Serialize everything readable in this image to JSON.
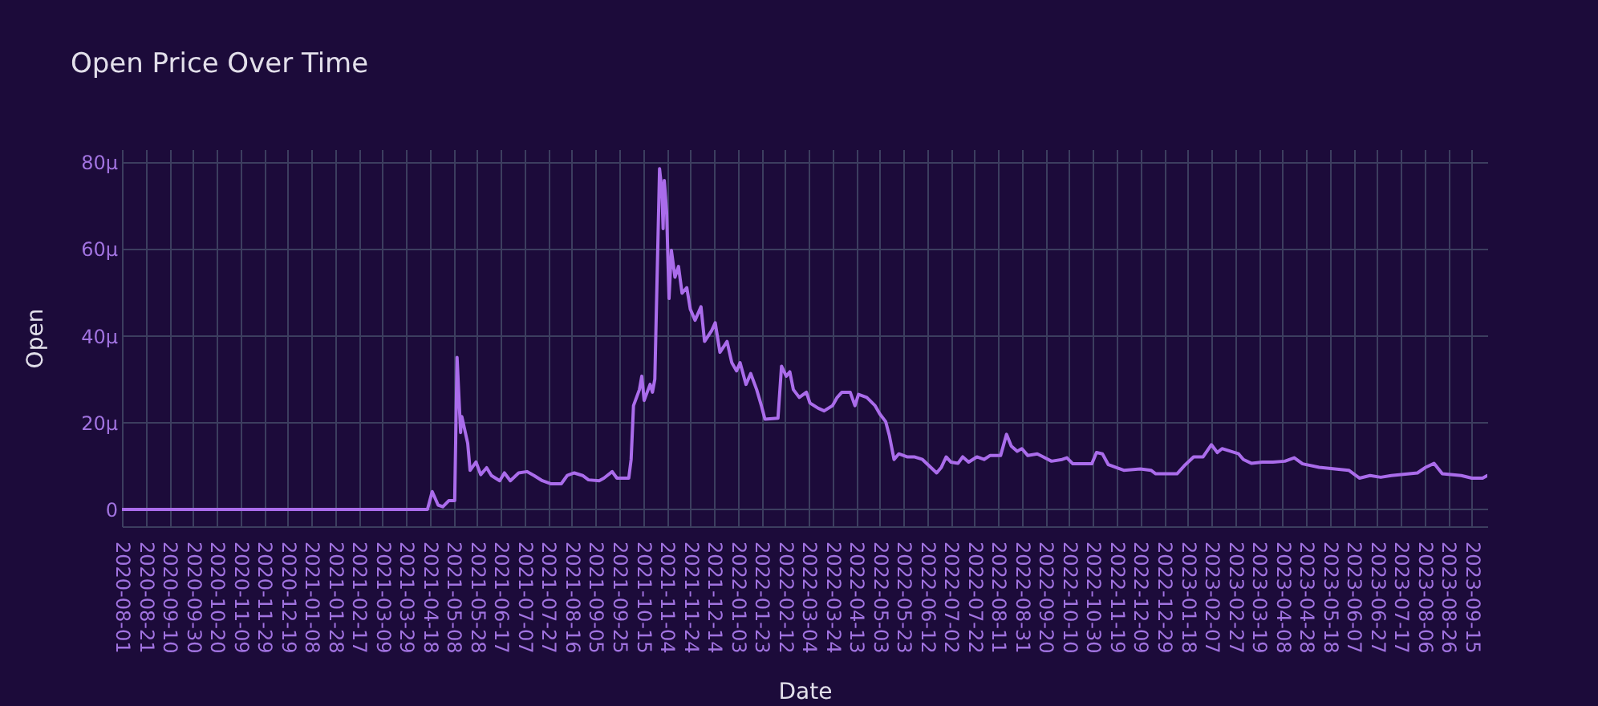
{
  "chart_data": {
    "type": "line",
    "title": "Open Price Over Time",
    "xlabel": "Date",
    "ylabel": "Open",
    "x": [
      "2020-08-01",
      "2021-04-16",
      "2021-04-20",
      "2021-04-25",
      "2021-04-29",
      "2021-05-04",
      "2021-05-09",
      "2021-05-11",
      "2021-05-14",
      "2021-05-15",
      "2021-05-18",
      "2021-05-20",
      "2021-05-22",
      "2021-05-27",
      "2021-05-31",
      "2021-06-05",
      "2021-06-09",
      "2021-06-16",
      "2021-06-20",
      "2021-06-25",
      "2021-07-02",
      "2021-07-09",
      "2021-07-15",
      "2021-07-22",
      "2021-07-29",
      "2021-08-07",
      "2021-08-12",
      "2021-08-18",
      "2021-08-25",
      "2021-08-30",
      "2021-09-08",
      "2021-09-12",
      "2021-09-19",
      "2021-09-23",
      "2021-10-03",
      "2021-10-05",
      "2021-10-07",
      "2021-10-12",
      "2021-10-14",
      "2021-10-16",
      "2021-10-21",
      "2021-10-23",
      "2021-10-25",
      "2021-10-29",
      "2021-10-31",
      "2021-11-01",
      "2021-11-02",
      "2021-11-04",
      "2021-11-06",
      "2021-11-08",
      "2021-11-11",
      "2021-11-14",
      "2021-11-17",
      "2021-11-21",
      "2021-11-24",
      "2021-11-28",
      "2021-12-03",
      "2021-12-06",
      "2021-12-12",
      "2021-12-15",
      "2021-12-19",
      "2021-12-25",
      "2021-12-29",
      "2022-01-02",
      "2022-01-05",
      "2022-01-10",
      "2022-01-14",
      "2022-01-19",
      "2022-01-23",
      "2022-01-26",
      "2022-02-06",
      "2022-02-09",
      "2022-02-13",
      "2022-02-16",
      "2022-02-19",
      "2022-02-24",
      "2022-03-02",
      "2022-03-05",
      "2022-03-12",
      "2022-03-17",
      "2022-03-24",
      "2022-03-28",
      "2022-04-01",
      "2022-04-08",
      "2022-04-12",
      "2022-04-15",
      "2022-04-22",
      "2022-04-29",
      "2022-05-03",
      "2022-05-08",
      "2022-05-11",
      "2022-05-15",
      "2022-05-19",
      "2022-05-26",
      "2022-06-01",
      "2022-06-08",
      "2022-06-15",
      "2022-06-20",
      "2022-06-24",
      "2022-06-28",
      "2022-07-02",
      "2022-07-08",
      "2022-07-12",
      "2022-07-17",
      "2022-07-24",
      "2022-07-30",
      "2022-08-04",
      "2022-08-13",
      "2022-08-18",
      "2022-08-22",
      "2022-08-27",
      "2022-08-31",
      "2022-09-05",
      "2022-09-13",
      "2022-09-18",
      "2022-09-25",
      "2022-10-04",
      "2022-10-08",
      "2022-10-13",
      "2022-10-29",
      "2022-11-02",
      "2022-11-07",
      "2022-11-12",
      "2022-11-18",
      "2022-11-25",
      "2022-12-09",
      "2022-12-18",
      "2022-12-22",
      "2023-01-09",
      "2023-01-16",
      "2023-01-23",
      "2023-01-31",
      "2023-02-07",
      "2023-02-12",
      "2023-02-16",
      "2023-02-23",
      "2023-03-02",
      "2023-03-06",
      "2023-03-13",
      "2023-03-22",
      "2023-03-31",
      "2023-04-10",
      "2023-04-18",
      "2023-04-25",
      "2023-05-09",
      "2023-06-03",
      "2023-06-12",
      "2023-06-21",
      "2023-06-30",
      "2023-07-09",
      "2023-07-31",
      "2023-08-07",
      "2023-08-14",
      "2023-08-21",
      "2023-09-06",
      "2023-09-15",
      "2023-09-24",
      "2023-09-28"
    ],
    "series": [
      {
        "color": "#aa6ceb",
        "values": [
          0,
          0,
          4.1,
          1.0,
          0.6,
          2.0,
          2.0,
          35,
          17.7,
          21.4,
          17.7,
          15.2,
          9.0,
          10.9,
          8.0,
          9.6,
          7.8,
          6.6,
          8.4,
          6.6,
          8.4,
          8.7,
          7.8,
          6.6,
          5.9,
          5.9,
          7.8,
          8.4,
          7.8,
          6.8,
          6.6,
          7.2,
          8.7,
          7.2,
          7.2,
          11.5,
          23.9,
          27.6,
          30.7,
          25.1,
          28.8,
          27.0,
          30.0,
          78.5,
          73.3,
          64.7,
          75.8,
          68.4,
          48.6,
          59.7,
          53.5,
          56.0,
          49.8,
          51.1,
          46.1,
          43.6,
          46.7,
          38.7,
          41.2,
          43.0,
          36.2,
          38.7,
          33.8,
          31.9,
          33.8,
          28.8,
          31.3,
          27.6,
          23.9,
          20.8,
          21.0,
          33.0,
          30.7,
          31.7,
          27.6,
          25.8,
          27.0,
          24.5,
          23.3,
          22.7,
          23.9,
          25.8,
          27.0,
          27.0,
          23.9,
          26.5,
          25.8,
          23.9,
          22.0,
          20.2,
          17.1,
          11.5,
          12.8,
          12.1,
          12.1,
          11.5,
          9.7,
          8.4,
          9.7,
          12.1,
          10.9,
          10.6,
          12.1,
          10.9,
          12.1,
          11.5,
          12.4,
          12.4,
          17.3,
          14.6,
          13.4,
          14.0,
          12.4,
          12.8,
          12.1,
          11.1,
          11.5,
          11.9,
          10.5,
          10.5,
          13.1,
          12.8,
          10.3,
          9.7,
          9.0,
          9.3,
          9.0,
          8.2,
          8.2,
          10.3,
          12.1,
          12.1,
          14.9,
          13.1,
          14.0,
          13.4,
          12.8,
          11.5,
          10.6,
          10.9,
          10.9,
          11.1,
          11.9,
          10.5,
          9.7,
          9.0,
          7.2,
          7.8,
          7.4,
          7.8,
          8.4,
          9.7,
          10.6,
          8.2,
          7.8,
          7.2,
          7.2,
          7.8
        ]
      }
    ],
    "xlim": [
      "2020-08-01",
      "2023-09-28"
    ],
    "ylim": [
      -3.9,
      83
    ],
    "xticks": [
      "2020-08-01",
      "2020-08-21",
      "2020-09-10",
      "2020-09-30",
      "2020-10-20",
      "2020-11-09",
      "2020-11-29",
      "2020-12-19",
      "2021-01-08",
      "2021-01-28",
      "2021-02-17",
      "2021-03-09",
      "2021-03-29",
      "2021-04-18",
      "2021-05-08",
      "2021-05-28",
      "2021-06-17",
      "2021-07-07",
      "2021-07-27",
      "2021-08-16",
      "2021-09-05",
      "2021-09-25",
      "2021-10-15",
      "2021-11-04",
      "2021-11-24",
      "2021-12-14",
      "2022-01-03",
      "2022-01-23",
      "2022-02-12",
      "2022-03-04",
      "2022-03-24",
      "2022-04-13",
      "2022-05-03",
      "2022-05-23",
      "2022-06-12",
      "2022-07-02",
      "2022-07-22",
      "2022-08-11",
      "2022-08-31",
      "2022-09-20",
      "2022-10-10",
      "2022-10-30",
      "2022-11-19",
      "2022-12-09",
      "2022-12-29",
      "2023-01-18",
      "2023-02-07",
      "2023-02-27",
      "2023-03-19",
      "2023-04-08",
      "2023-04-28",
      "2023-05-18",
      "2023-06-07",
      "2023-06-27",
      "2023-07-17",
      "2023-08-06",
      "2023-08-26",
      "2023-09-15"
    ],
    "yticks": [
      0,
      {
        "value": 20,
        "label": "20µ"
      },
      {
        "value": 40,
        "label": "40µ"
      },
      {
        "value": 60,
        "label": "60µ"
      },
      {
        "value": 80,
        "label": "80µ"
      }
    ],
    "grid": true
  }
}
